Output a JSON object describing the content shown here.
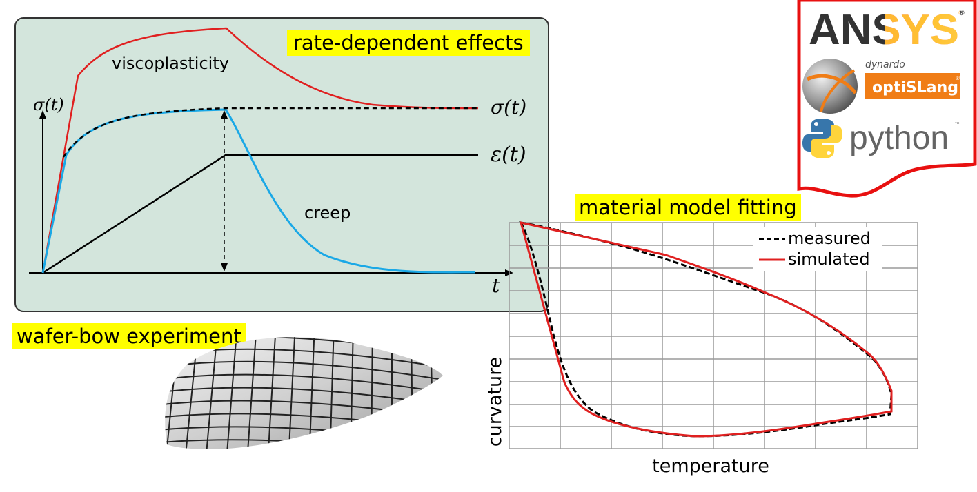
{
  "diagram": {
    "title": "rate-dependent effects",
    "labels": {
      "viscoplasticity": "viscoplasticity",
      "creep": "creep",
      "sigma_axis": "σ(t)",
      "sigma_curve": "σ(t)",
      "epsilon_curve": "ε(t)",
      "time_axis": "t"
    }
  },
  "wafer": {
    "title": "wafer-bow experiment"
  },
  "logos": {
    "ansys": "ANSYS",
    "dynardo": "dynardo",
    "optislang": "optiSLang",
    "python": "python",
    "tm": "™",
    "reg": "®"
  },
  "fitting": {
    "title": "material model fitting",
    "chart_data": {
      "type": "line",
      "xlabel": "temperature",
      "ylabel": "curvature",
      "grid": true,
      "legend_position": "top-right",
      "series": [
        {
          "name": "measured",
          "style": "dashed",
          "color": "#000000"
        },
        {
          "name": "simulated",
          "style": "solid",
          "color": "#e02020"
        }
      ]
    }
  },
  "colors": {
    "panel_bg": "#d3e5dc",
    "highlight": "#ffff00",
    "red": "#e02020",
    "blue": "#1aa8e6",
    "ansys_gold": "#ffb71b",
    "optislang_orange": "#f07d16"
  }
}
